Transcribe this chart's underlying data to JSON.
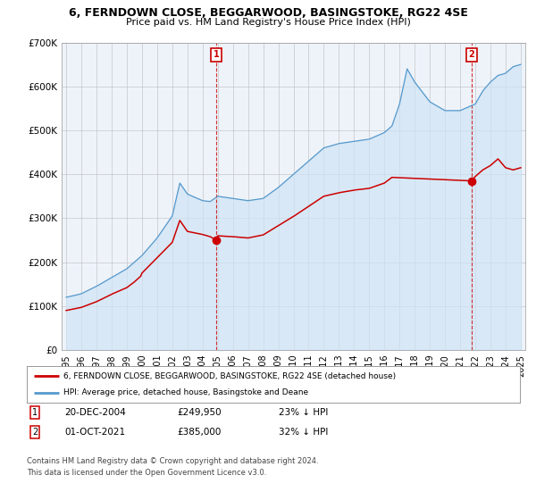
{
  "title_line1": "6, FERNDOWN CLOSE, BEGGARWOOD, BASINGSTOKE, RG22 4SE",
  "title_line2": "Price paid vs. HM Land Registry's House Price Index (HPI)",
  "background_color": "#ffffff",
  "plot_bg_color": "#eef3fa",
  "legend_line1": "6, FERNDOWN CLOSE, BEGGARWOOD, BASINGSTOKE, RG22 4SE (detached house)",
  "legend_line2": "HPI: Average price, detached house, Basingstoke and Deane",
  "sale1_date_str": "20-DEC-2004",
  "sale1_price_str": "£249,950",
  "sale1_pct": "23% ↓ HPI",
  "sale2_date_str": "01-OCT-2021",
  "sale2_price_str": "£385,000",
  "sale2_pct": "32% ↓ HPI",
  "footer_line1": "Contains HM Land Registry data © Crown copyright and database right 2024.",
  "footer_line2": "This data is licensed under the Open Government Licence v3.0.",
  "red_color": "#cc0000",
  "blue_color": "#5599cc",
  "blue_fill_color": "#d0e4f5",
  "ylim_min": 0,
  "ylim_max": 700000,
  "ytick_values": [
    0,
    100000,
    200000,
    300000,
    400000,
    500000,
    600000,
    700000
  ],
  "ytick_labels": [
    "£0",
    "£100K",
    "£200K",
    "£300K",
    "£400K",
    "£500K",
    "£600K",
    "£700K"
  ],
  "sale1_x": 9.9167,
  "sale2_x": 26.75,
  "sale1_price": 249950,
  "sale2_price": 385000
}
